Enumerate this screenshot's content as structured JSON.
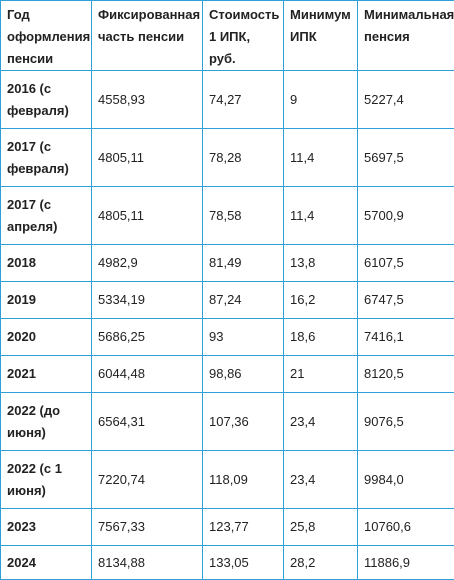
{
  "table": {
    "headers": [
      "Год оформления пенсии",
      "Фиксированная часть пенсии",
      "Стоимость 1 ИПК, руб.",
      "Минимум ИПК",
      "Минимальная пенсия"
    ],
    "rows": [
      [
        "2016 (с февраля)",
        "4558,93",
        "74,27",
        "9",
        "5227,4"
      ],
      [
        "2017 (с февраля)",
        "4805,11",
        "78,28",
        "11,4",
        "5697,5"
      ],
      [
        "2017 (с апреля)",
        "4805,11",
        "78,58",
        "11,4",
        "5700,9"
      ],
      [
        "2018",
        "4982,9",
        "81,49",
        "13,8",
        "6107,5"
      ],
      [
        "2019",
        "5334,19",
        "87,24",
        "16,2",
        "6747,5"
      ],
      [
        "2020",
        "5686,25",
        "93",
        "18,6",
        "7416,1"
      ],
      [
        "2021",
        "6044,48",
        "98,86",
        "21",
        "8120,5"
      ],
      [
        "2022 (до июня)",
        "6564,31",
        "107,36",
        "23,4",
        "9076,5"
      ],
      [
        "2022 (с 1 июня)",
        "7220,74",
        "118,09",
        "23,4",
        "9984,0"
      ],
      [
        "2023",
        "7567,33",
        "123,77",
        "25,8",
        "10760,6"
      ],
      [
        "2024",
        "8134,88",
        "133,05",
        "28,2",
        "11886,9"
      ]
    ]
  },
  "colors": {
    "border": "#2d9fd9",
    "text": "#222222",
    "background": "#ffffff"
  }
}
